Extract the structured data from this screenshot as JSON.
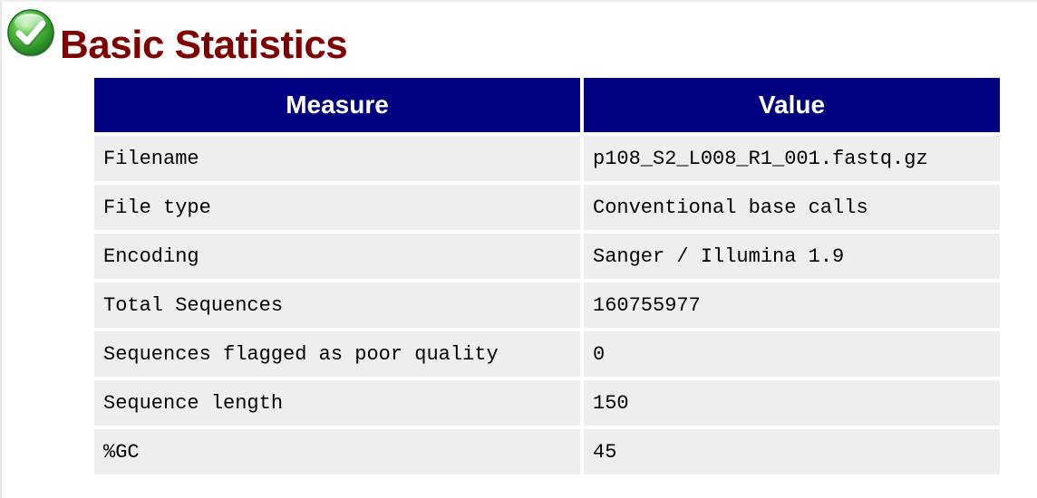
{
  "module": {
    "title": "Basic Statistics",
    "status_icon": "pass-check-icon",
    "colors": {
      "title": "#800000",
      "header_bg": "#000080",
      "header_text": "#ffffff",
      "cell_bg": "#eeeeee",
      "icon_green": "#3aa23a"
    }
  },
  "table": {
    "headers": [
      "Measure",
      "Value"
    ],
    "rows": [
      {
        "measure": "Filename",
        "value": "p108_S2_L008_R1_001.fastq.gz"
      },
      {
        "measure": "File type",
        "value": "Conventional base calls"
      },
      {
        "measure": "Encoding",
        "value": "Sanger / Illumina 1.9"
      },
      {
        "measure": "Total Sequences",
        "value": "160755977"
      },
      {
        "measure": "Sequences flagged as poor quality",
        "value": "0"
      },
      {
        "measure": "Sequence length",
        "value": "150"
      },
      {
        "measure": "%GC",
        "value": "45"
      }
    ]
  }
}
